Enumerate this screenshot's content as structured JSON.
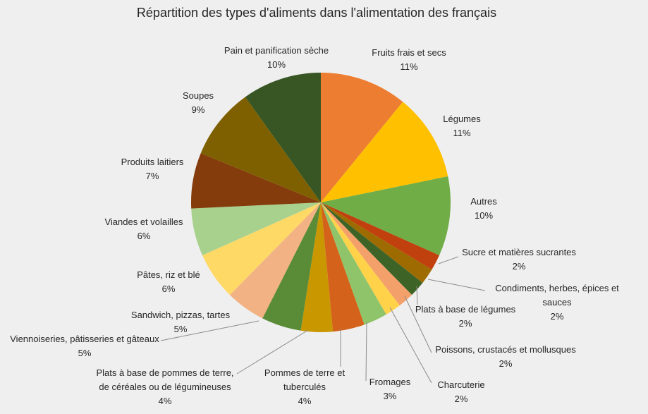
{
  "chart_data": {
    "type": "pie",
    "title": "Répartition des types d'aliments dans l'alimentation des français",
    "start_angle_deg": 0,
    "direction": "clockwise",
    "slices": [
      {
        "label": [
          "Fruits frais et secs"
        ],
        "value": 11,
        "pct": "11%",
        "color": "#ed7d31"
      },
      {
        "label": [
          "Légumes"
        ],
        "value": 11,
        "pct": "11%",
        "color": "#ffc000"
      },
      {
        "label": [
          "Autres"
        ],
        "value": 10,
        "pct": "10%",
        "color": "#70ad47"
      },
      {
        "label": [
          "Sucre et matières sucrantes"
        ],
        "value": 2,
        "pct": "2%",
        "color": "#c0400e"
      },
      {
        "label": [
          "Condiments, herbes, épices et",
          "sauces"
        ],
        "value": 2,
        "pct": "2%",
        "color": "#9e6b00"
      },
      {
        "label": [
          "Plats à base de légumes"
        ],
        "value": 2,
        "pct": "2%",
        "color": "#3d6426"
      },
      {
        "label": [
          "Poissons, crustacés et mollusques"
        ],
        "value": 2,
        "pct": "2%",
        "color": "#f4a06a"
      },
      {
        "label": [
          "Charcuterie"
        ],
        "value": 2,
        "pct": "2%",
        "color": "#ffd24a"
      },
      {
        "label": [
          "Fromages"
        ],
        "value": 3,
        "pct": "3%",
        "color": "#90c46a"
      },
      {
        "label": [
          "Pommes de terre et",
          "tuberculés"
        ],
        "value": 4,
        "pct": "4%",
        "color": "#d4621a"
      },
      {
        "label": [
          "Plats à base de pommes de terre,",
          "de céréales ou de légumineuses"
        ],
        "value": 4,
        "pct": "4%",
        "color": "#c99700"
      },
      {
        "label": [
          "Viennoiseries, pâtisseries et gâteaux"
        ],
        "value": 5,
        "pct": "5%",
        "color": "#5a8c38"
      },
      {
        "label": [
          "Sandwich, pizzas, tartes"
        ],
        "value": 5,
        "pct": "5%",
        "color": "#f2b283"
      },
      {
        "label": [
          "Pâtes, riz et blé"
        ],
        "value": 6,
        "pct": "6%",
        "color": "#ffd966"
      },
      {
        "label": [
          "Viandes et volailles"
        ],
        "value": 6,
        "pct": "6%",
        "color": "#a9d18e"
      },
      {
        "label": [
          "Produits laitiers"
        ],
        "value": 7,
        "pct": "7%",
        "color": "#843c0c"
      },
      {
        "label": [
          "Soupes"
        ],
        "value": 9,
        "pct": "9%",
        "color": "#7f6000"
      },
      {
        "label": [
          "Pain et panification sèche"
        ],
        "value": 10,
        "pct": "10%",
        "color": "#375623"
      }
    ]
  }
}
